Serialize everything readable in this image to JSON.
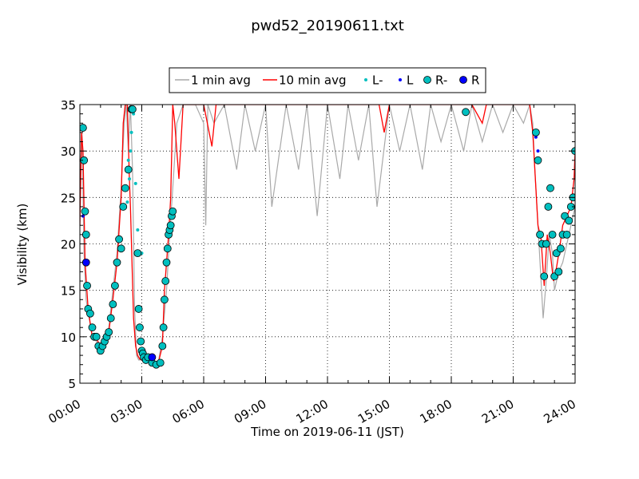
{
  "chart_data": {
    "type": "line",
    "title": "pwd52_20190611.txt",
    "xlabel": "Time on 2019-06-11 (JST)",
    "ylabel": "Visibility (km)",
    "xlim": [
      0,
      24
    ],
    "ylim": [
      5,
      35
    ],
    "x_unit": "hours",
    "x_tick_labels": [
      "00:00",
      "03:00",
      "06:00",
      "09:00",
      "12:00",
      "15:00",
      "18:00",
      "21:00",
      "24:00"
    ],
    "x_ticks": [
      0,
      3,
      6,
      9,
      12,
      15,
      18,
      21,
      24
    ],
    "y_ticks": [
      5,
      10,
      15,
      20,
      25,
      30,
      35
    ],
    "y_tick_labels": [
      "5",
      "10",
      "15",
      "20",
      "25",
      "30",
      "35"
    ],
    "grid": true,
    "legend_position": "top-center",
    "legend": [
      {
        "label": "1 min avg",
        "kind": "line",
        "color": "#a9a9a9"
      },
      {
        "label": "10 min avg",
        "kind": "line",
        "color": "#ff0000"
      },
      {
        "label": "L-",
        "kind": "small-dot",
        "color": "#00bfbf"
      },
      {
        "label": "L",
        "kind": "small-dot",
        "color": "#0000ff"
      },
      {
        "label": "R-",
        "kind": "marker",
        "color": "#00bfbf"
      },
      {
        "label": "R",
        "kind": "marker",
        "color": "#0000ff"
      }
    ],
    "series": [
      {
        "name": "1 min avg",
        "color": "#a9a9a9",
        "x": [
          0.0,
          0.1,
          0.2,
          0.3,
          0.45,
          0.6,
          0.8,
          1.0,
          1.2,
          1.4,
          1.6,
          1.8,
          2.0,
          2.15,
          2.25,
          2.35,
          2.45,
          2.55,
          2.65,
          2.75,
          2.85,
          3.0,
          3.2,
          3.5,
          3.8,
          4.0,
          4.2,
          4.35,
          4.5,
          4.7,
          5.0,
          5.3,
          5.6,
          6.0,
          6.1,
          6.2,
          6.5,
          7.0,
          7.6,
          8.0,
          8.5,
          9.0,
          9.3,
          10.0,
          10.6,
          11.0,
          11.5,
          12.0,
          12.6,
          13.0,
          13.5,
          14.0,
          14.4,
          15.0,
          15.5,
          16.0,
          16.6,
          17.0,
          17.5,
          18.0,
          18.6,
          19.0,
          19.5,
          20.0,
          20.5,
          21.0,
          21.5,
          21.8,
          21.95,
          22.05,
          22.2,
          22.3,
          22.45,
          22.6,
          22.75,
          22.9,
          23.0,
          23.2,
          23.4,
          23.6,
          23.8,
          24.0
        ],
        "values": [
          26,
          32,
          19,
          14,
          12,
          10,
          9.5,
          8.5,
          9.5,
          11,
          15,
          19,
          26,
          33,
          35,
          30,
          35,
          28,
          13,
          8,
          7.5,
          7.5,
          7.5,
          7.3,
          7.2,
          10,
          15,
          21,
          26,
          33,
          35,
          35,
          35,
          33,
          22,
          35,
          33,
          35,
          28,
          35,
          30,
          35,
          24,
          35,
          28,
          35,
          23,
          35,
          27,
          35,
          29,
          35,
          24,
          35,
          30,
          35,
          28,
          35,
          31,
          35,
          30,
          35,
          31,
          35,
          32,
          35,
          33,
          35,
          33,
          28,
          22,
          18,
          12,
          16,
          21,
          19,
          15,
          17,
          18,
          20,
          22,
          24
        ]
      },
      {
        "name": "10 min avg",
        "color": "#ff0000",
        "x": [
          0.0,
          0.08,
          0.15,
          0.25,
          0.4,
          0.6,
          0.8,
          1.0,
          1.2,
          1.4,
          1.6,
          1.8,
          2.0,
          2.1,
          2.2,
          2.3,
          2.4,
          2.45,
          2.5,
          2.6,
          2.7,
          2.8,
          2.9,
          3.0,
          3.2,
          3.4,
          3.6,
          3.8,
          4.0,
          4.1,
          4.2,
          4.3,
          4.4,
          4.5,
          4.6,
          4.8,
          5.0,
          5.2,
          5.4,
          5.6,
          5.8,
          6.0,
          6.4,
          6.6,
          6.8,
          7.0,
          8.0,
          9.0,
          10.0,
          11.0,
          13.0,
          14.5,
          14.75,
          15.0,
          16.0,
          17.0,
          18.0,
          19.0,
          19.5,
          19.7,
          19.9,
          20.2,
          21.0,
          21.8,
          21.95,
          22.05,
          22.2,
          22.35,
          22.5,
          22.65,
          22.8,
          22.95,
          23.1,
          23.25,
          23.4,
          23.6,
          23.8,
          23.95,
          24.0
        ],
        "values": [
          22,
          32,
          30,
          18,
          13,
          10,
          9.8,
          9.0,
          9.5,
          10.5,
          14,
          18,
          25,
          33,
          35,
          35,
          27,
          24,
          20,
          12,
          9,
          8,
          7.6,
          7.5,
          7.5,
          7.4,
          7.2,
          7.2,
          9,
          15,
          18,
          21,
          25,
          35,
          33,
          27,
          35,
          35,
          35,
          35,
          35,
          35,
          30.5,
          35,
          35,
          35,
          35,
          35,
          35,
          35,
          35,
          35,
          32,
          35,
          35,
          35,
          35,
          35,
          33,
          35,
          35,
          35,
          35,
          35,
          32,
          28,
          22,
          20.5,
          15.5,
          21,
          19,
          16,
          17.5,
          19.5,
          22,
          23,
          24,
          27,
          30
        ]
      },
      {
        "name": "L-",
        "color": "#00bfbf",
        "x": [
          2.3,
          2.35,
          2.4,
          2.45,
          2.5,
          2.6,
          2.7,
          2.8,
          3.0
        ],
        "values": [
          24.5,
          29,
          27,
          30,
          32,
          34,
          26.5,
          21.5,
          19
        ]
      },
      {
        "name": "L",
        "color": "#0000ff",
        "x": [
          0.15,
          22.1,
          22.2
        ],
        "values": [
          23,
          31.5,
          30
        ]
      },
      {
        "name": "R-",
        "color": "#00bfbf",
        "x": [
          0.15,
          0.2,
          0.25,
          0.3,
          0.35,
          0.4,
          0.5,
          0.6,
          0.7,
          0.8,
          0.9,
          1.0,
          1.1,
          1.2,
          1.3,
          1.4,
          1.5,
          1.6,
          1.7,
          1.8,
          1.9,
          2.0,
          2.1,
          2.2,
          2.35,
          2.5,
          2.55,
          2.8,
          2.85,
          2.9,
          2.95,
          3.0,
          3.05,
          3.1,
          3.2,
          3.3,
          3.5,
          3.7,
          3.9,
          4.0,
          4.05,
          4.1,
          4.15,
          4.2,
          4.25,
          4.3,
          4.35,
          4.4,
          4.45,
          4.5,
          18.7,
          22.1,
          22.2,
          22.3,
          22.4,
          22.5,
          22.6,
          22.7,
          22.8,
          22.9,
          23.0,
          23.1,
          23.2,
          23.3,
          23.4,
          23.5,
          23.6,
          23.7,
          23.8,
          23.9,
          24.0
        ],
        "values": [
          32.5,
          29,
          23.5,
          21,
          15.5,
          13,
          12.5,
          11,
          10,
          10,
          9,
          8.5,
          9,
          9.5,
          10,
          10.5,
          12,
          13.5,
          15.5,
          18,
          20.5,
          19.5,
          24,
          26,
          28,
          34.5,
          34.5,
          19,
          13,
          11,
          9.5,
          8.5,
          8.2,
          7.8,
          7.5,
          7.8,
          7.2,
          7.0,
          7.2,
          9,
          11,
          14,
          16,
          18,
          19.5,
          21,
          21.5,
          22,
          23,
          23.5,
          34.2,
          32,
          29,
          21,
          20,
          16.5,
          20,
          24,
          26,
          21,
          16.5,
          19,
          17,
          19.5,
          21,
          23,
          21,
          22.5,
          24,
          25,
          30
        ]
      },
      {
        "name": "R",
        "color": "#0000ff",
        "x": [
          0.3,
          3.5
        ],
        "values": [
          18,
          7.8
        ]
      }
    ]
  }
}
